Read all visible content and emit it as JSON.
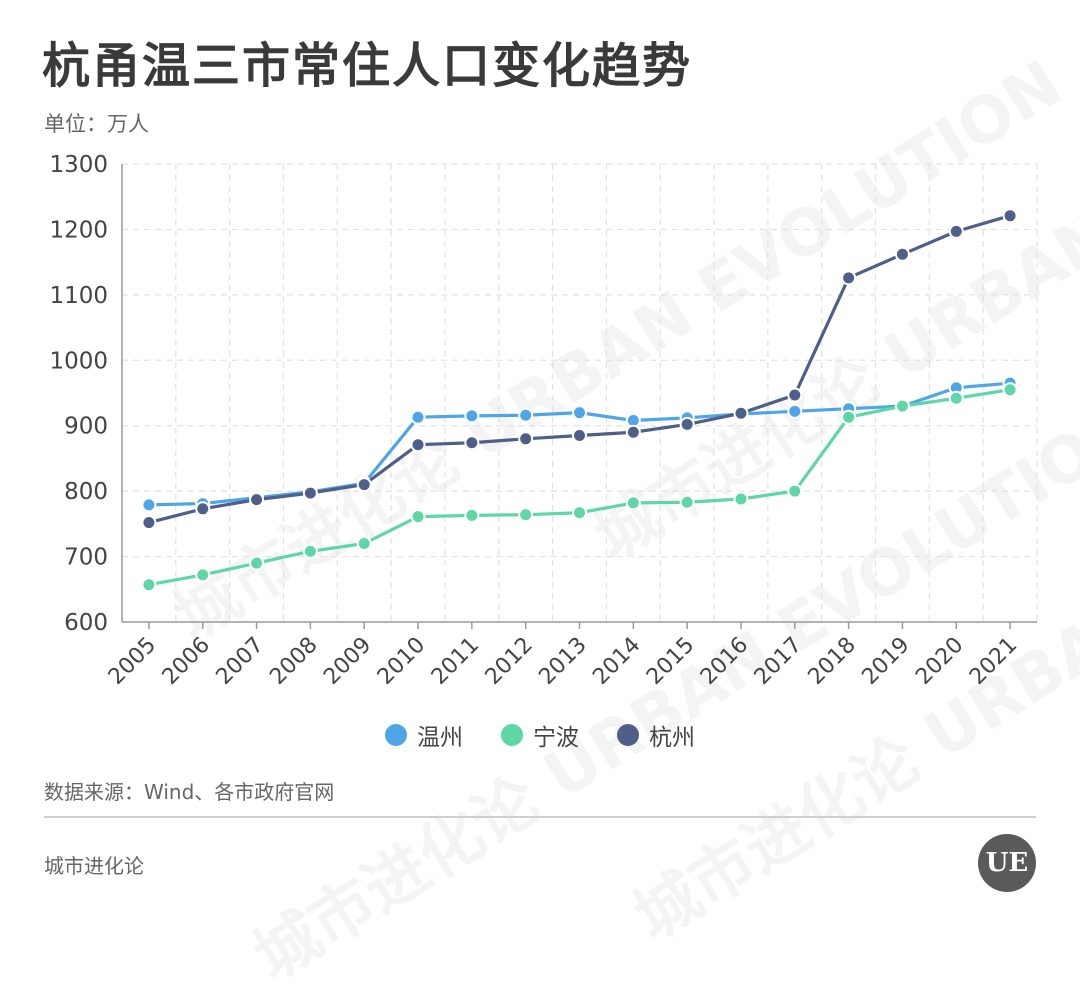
{
  "header": {
    "title": "杭甬温三市常住人口变化趋势",
    "unit": "单位：万人"
  },
  "source": "数据来源：Wind、各市政府官网",
  "footer": "城市进化论",
  "logo_text": "UE",
  "watermark_text": "城市进化论 URBAN EVOLUTION",
  "chart_data": {
    "type": "line",
    "x": [
      "2005",
      "2006",
      "2007",
      "2008",
      "2009",
      "2010",
      "2011",
      "2012",
      "2013",
      "2014",
      "2015",
      "2016",
      "2017",
      "2018",
      "2019",
      "2020",
      "2021"
    ],
    "ylim": [
      600,
      1300
    ],
    "yticks": [
      600,
      700,
      800,
      900,
      1000,
      1100,
      1200,
      1300
    ],
    "grid": true,
    "legend_position": "bottom",
    "series": [
      {
        "name": "温州",
        "color": "#4ea5e8",
        "values": [
          779,
          781,
          790,
          799,
          812,
          913,
          915,
          916,
          920,
          908,
          912,
          918,
          922,
          926,
          930,
          958,
          965
        ]
      },
      {
        "name": "宁波",
        "color": "#5fd6a6",
        "values": [
          657,
          672,
          690,
          708,
          720,
          761,
          763,
          764,
          767,
          782,
          783,
          788,
          800,
          913,
          930,
          942,
          955
        ]
      },
      {
        "name": "杭州",
        "color": "#4e5f8a",
        "values": [
          752,
          773,
          787,
          797,
          810,
          871,
          874,
          880,
          885,
          890,
          902,
          919,
          947,
          1126,
          1162,
          1197,
          1221
        ]
      }
    ]
  }
}
